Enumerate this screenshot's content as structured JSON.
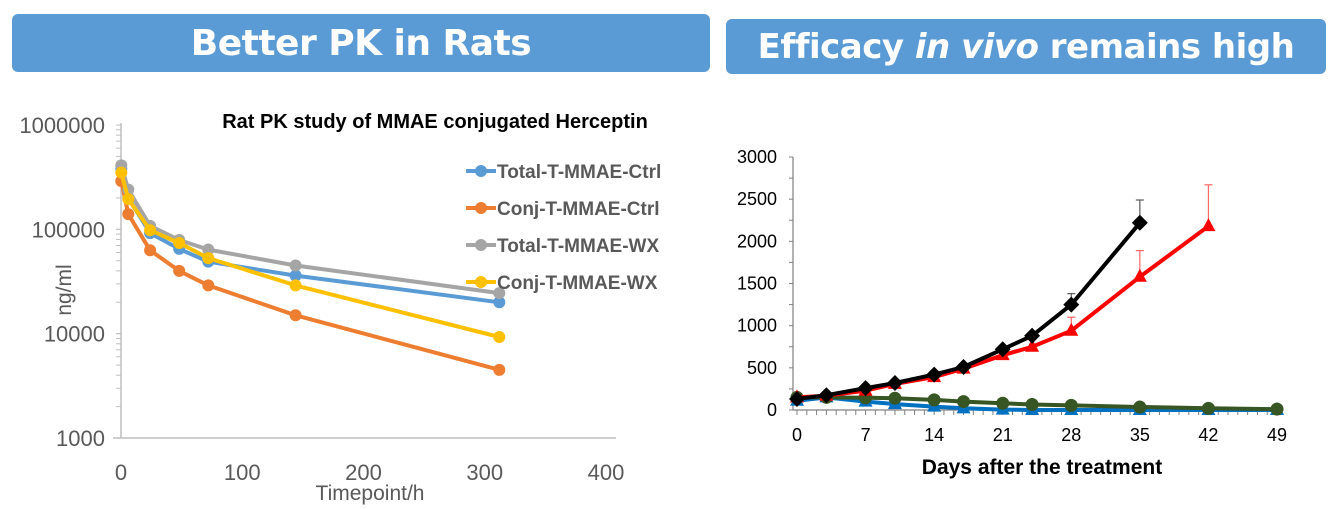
{
  "banners": {
    "left": "Better PK in Rats",
    "right_prefix": "Efficacy ",
    "right_italic": "in vivo",
    "right_suffix": " remains high"
  },
  "chart_data": [
    {
      "type": "line",
      "title": "Rat PK study of MMAE conjugated Herceptin",
      "xlabel": "Timepoint/h",
      "ylabel": "ng/ml",
      "yscale": "log",
      "xlim": [
        0,
        400
      ],
      "ylim": [
        1000,
        1000000
      ],
      "xticks": [
        "0",
        "100",
        "200",
        "300",
        "400"
      ],
      "yticks": [
        "1000",
        "10000",
        "100000",
        "1000000"
      ],
      "legend_position": "right",
      "grid": false,
      "x": [
        0.25,
        6,
        24,
        48,
        72,
        144,
        312
      ],
      "series": [
        {
          "name": "Total-T-MMAE-Ctrl",
          "color": "#5b9bd5",
          "values": [
            380000,
            200000,
            92000,
            65000,
            49000,
            36000,
            20000
          ]
        },
        {
          "name": "Conj-T-MMAE-Ctrl",
          "color": "#ed7d31",
          "values": [
            290000,
            140000,
            63000,
            40000,
            29000,
            15000,
            4500
          ]
        },
        {
          "name": "Total-T-MMAE-WX",
          "color": "#a5a5a5",
          "values": [
            410000,
            240000,
            108000,
            79000,
            64000,
            45000,
            24500
          ]
        },
        {
          "name": "Conj-T-MMAE-WX",
          "color": "#ffc000",
          "values": [
            350000,
            195000,
            98000,
            74000,
            53000,
            29000,
            9300
          ]
        }
      ]
    },
    {
      "type": "line",
      "title": "",
      "xlabel": "Days after the treatment",
      "ylabel": "",
      "xlim": [
        0,
        49
      ],
      "ylim": [
        0,
        3000
      ],
      "xticks": [
        "0",
        "7",
        "14",
        "21",
        "28",
        "35",
        "42",
        "49"
      ],
      "yticks": [
        "0",
        "500",
        "1000",
        "1500",
        "2000",
        "2500",
        "3000"
      ],
      "grid": false,
      "series": [
        {
          "name": "black-diamond",
          "color": "#000000",
          "marker": "diamond",
          "x": [
            0,
            3,
            7,
            10,
            14,
            17,
            21,
            24,
            28,
            35
          ],
          "values": [
            130,
            175,
            260,
            320,
            420,
            510,
            720,
            880,
            1250,
            2220
          ],
          "error_upper": [
            null,
            null,
            null,
            null,
            null,
            null,
            null,
            null,
            1380,
            2490
          ]
        },
        {
          "name": "red-triangle",
          "color": "#ff0000",
          "marker": "triangle",
          "x": [
            0,
            3,
            7,
            10,
            14,
            17,
            21,
            24,
            28,
            35,
            42
          ],
          "values": [
            150,
            170,
            230,
            310,
            390,
            490,
            650,
            750,
            940,
            1580,
            2180
          ],
          "error_upper": [
            null,
            null,
            null,
            null,
            null,
            null,
            null,
            null,
            1100,
            1890,
            2670
          ]
        },
        {
          "name": "blue-triangle",
          "color": "#0070c0",
          "marker": "triangle",
          "x": [
            0,
            3,
            7,
            10,
            14,
            17,
            21,
            24,
            28,
            35,
            42,
            49
          ],
          "values": [
            110,
            150,
            100,
            70,
            40,
            20,
            5,
            0,
            0,
            0,
            0,
            0
          ]
        },
        {
          "name": "green-circle",
          "color": "#375623",
          "marker": "circle",
          "x": [
            0,
            3,
            7,
            10,
            14,
            17,
            21,
            24,
            28,
            35,
            42,
            49
          ],
          "values": [
            150,
            150,
            145,
            140,
            120,
            100,
            80,
            65,
            55,
            35,
            20,
            10
          ]
        }
      ]
    }
  ]
}
